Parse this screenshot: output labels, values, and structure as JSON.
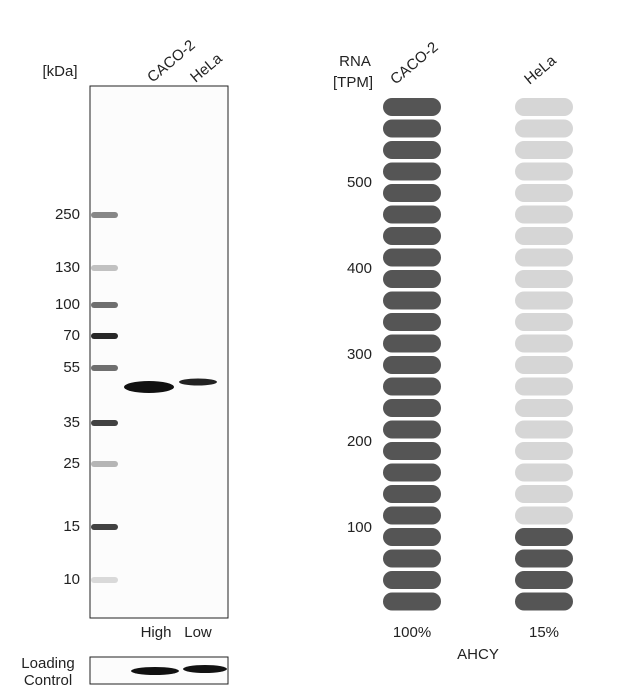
{
  "blot": {
    "unit_label": "[kDa]",
    "lanes": [
      "CACO-2",
      "HeLa"
    ],
    "markers": [
      "250",
      "130",
      "100",
      "70",
      "55",
      "35",
      "25",
      "15",
      "10"
    ],
    "lane_levels": [
      "High",
      "Low"
    ],
    "loading_control": [
      "Loading",
      "Control"
    ]
  },
  "rna": {
    "axis_label": [
      "RNA",
      "[TPM]"
    ],
    "ticks": [
      "500",
      "400",
      "300",
      "200",
      "100"
    ],
    "samples": [
      {
        "name": "CACO-2",
        "value_label": "100%"
      },
      {
        "name": "HeLa",
        "value_label": "15%"
      }
    ],
    "gene": "AHCY"
  }
}
